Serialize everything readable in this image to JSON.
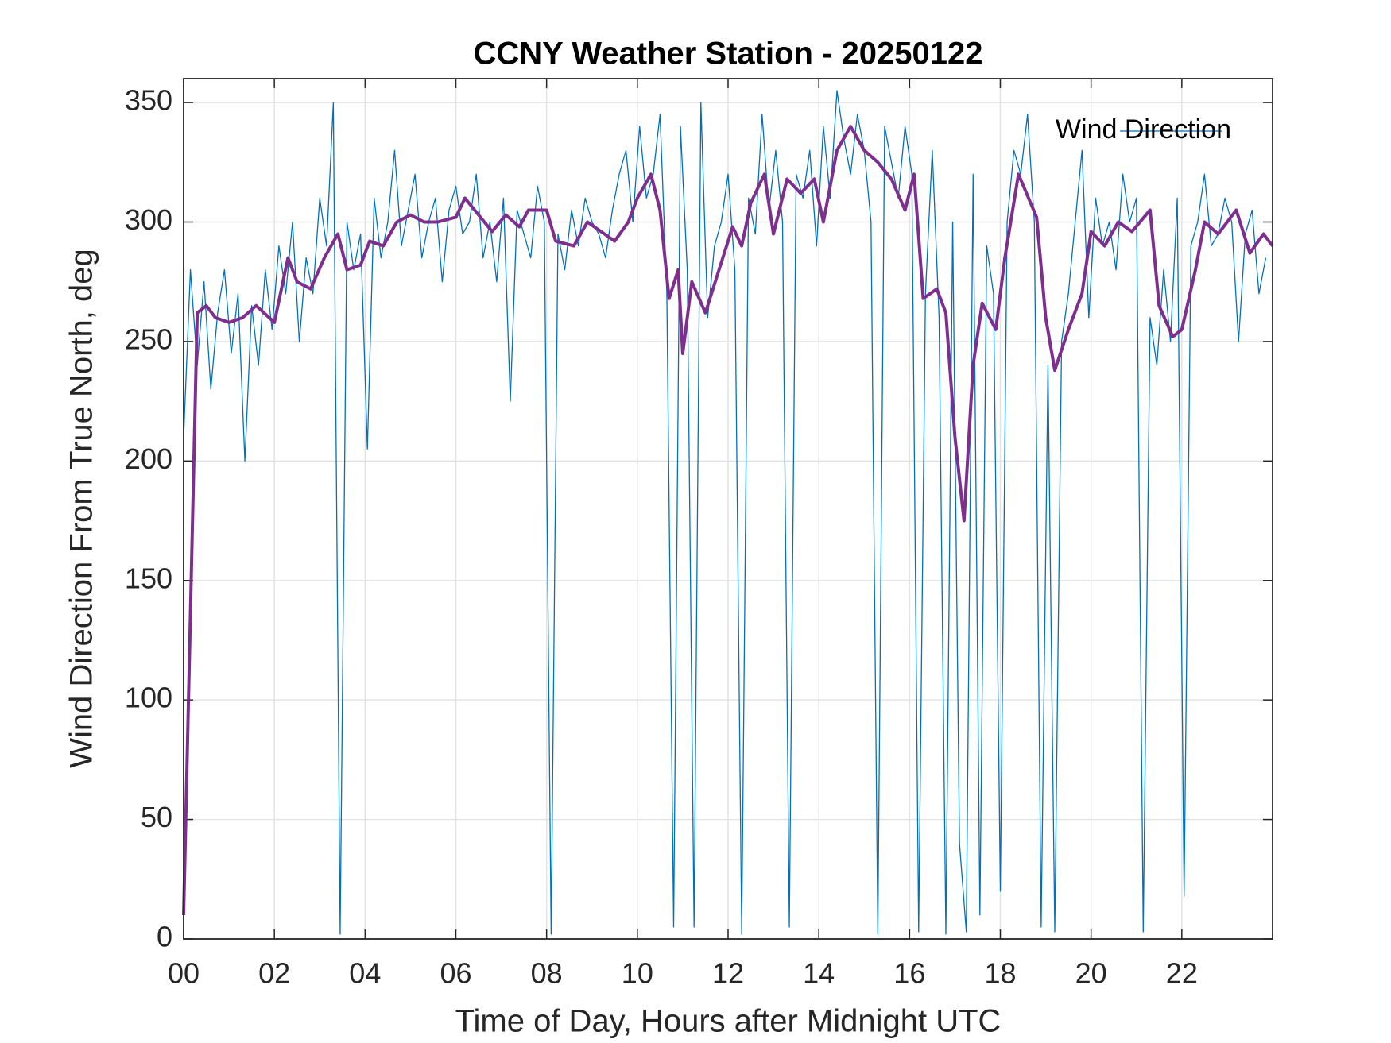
{
  "chart_data": {
    "type": "line",
    "title": "CCNY Weather Station - 20250122",
    "x_label": "Time of Day, Hours after Midnight UTC",
    "y_label": "Wind Direction From True North, deg",
    "xlim": [
      0,
      24
    ],
    "ylim": [
      0,
      360
    ],
    "xticks": [
      {
        "value": 0,
        "label": "00"
      },
      {
        "value": 2,
        "label": "02"
      },
      {
        "value": 4,
        "label": "04"
      },
      {
        "value": 6,
        "label": "06"
      },
      {
        "value": 8,
        "label": "08"
      },
      {
        "value": 10,
        "label": "10"
      },
      {
        "value": 12,
        "label": "12"
      },
      {
        "value": 14,
        "label": "14"
      },
      {
        "value": 16,
        "label": "16"
      },
      {
        "value": 18,
        "label": "18"
      },
      {
        "value": 20,
        "label": "20"
      },
      {
        "value": 22,
        "label": "22"
      }
    ],
    "yticks": [
      0,
      50,
      100,
      150,
      200,
      250,
      300,
      350
    ],
    "grid": true,
    "legend": "upper right",
    "series": [
      {
        "name": "Wind Direction",
        "color": "#0072BD",
        "width": 1.3,
        "x": [
          0,
          0.15,
          0.3,
          0.45,
          0.6,
          0.75,
          0.9,
          1.05,
          1.2,
          1.35,
          1.5,
          1.65,
          1.8,
          1.95,
          2.1,
          2.25,
          2.4,
          2.55,
          2.7,
          2.85,
          3,
          3.15,
          3.3,
          3.45,
          3.6,
          3.75,
          3.9,
          4.05,
          4.2,
          4.35,
          4.5,
          4.65,
          4.8,
          4.95,
          5.1,
          5.25,
          5.4,
          5.55,
          5.7,
          5.85,
          6,
          6.15,
          6.3,
          6.45,
          6.6,
          6.75,
          6.9,
          7.05,
          7.2,
          7.35,
          7.5,
          7.65,
          7.8,
          7.95,
          8.1,
          8.25,
          8.4,
          8.55,
          8.7,
          8.85,
          9,
          9.15,
          9.3,
          9.45,
          9.6,
          9.75,
          9.9,
          10.05,
          10.2,
          10.35,
          10.5,
          10.65,
          10.8,
          10.95,
          11.1,
          11.25,
          11.4,
          11.55,
          11.7,
          11.85,
          12,
          12.15,
          12.3,
          12.45,
          12.6,
          12.75,
          12.9,
          13.05,
          13.2,
          13.35,
          13.5,
          13.65,
          13.8,
          13.95,
          14.1,
          14.25,
          14.4,
          14.55,
          14.7,
          14.85,
          15,
          15.15,
          15.3,
          15.45,
          15.6,
          15.75,
          15.9,
          16.05,
          16.2,
          16.35,
          16.5,
          16.65,
          16.8,
          16.95,
          17.1,
          17.25,
          17.4,
          17.55,
          17.7,
          17.85,
          18,
          18.15,
          18.3,
          18.45,
          18.6,
          18.75,
          18.9,
          19.05,
          19.2,
          19.35,
          19.5,
          19.65,
          19.8,
          19.95,
          20.1,
          20.25,
          20.4,
          20.55,
          20.7,
          20.85,
          21,
          21.15,
          21.3,
          21.45,
          21.6,
          21.75,
          21.9,
          22.05,
          22.2,
          22.35,
          22.5,
          22.65,
          22.8,
          22.95,
          23.1,
          23.25,
          23.4,
          23.55,
          23.7,
          23.85
        ],
        "values": [
          210,
          280,
          240,
          275,
          230,
          262,
          280,
          245,
          270,
          200,
          265,
          240,
          280,
          255,
          290,
          270,
          300,
          250,
          285,
          270,
          310,
          290,
          350,
          2,
          300,
          280,
          295,
          205,
          310,
          285,
          300,
          330,
          290,
          305,
          320,
          285,
          300,
          310,
          275,
          305,
          315,
          295,
          300,
          320,
          285,
          300,
          275,
          310,
          225,
          305,
          295,
          285,
          315,
          300,
          2,
          295,
          280,
          305,
          290,
          310,
          300,
          295,
          285,
          305,
          320,
          330,
          300,
          340,
          310,
          320,
          345,
          270,
          5,
          340,
          280,
          5,
          350,
          260,
          290,
          300,
          320,
          280,
          2,
          310,
          295,
          345,
          305,
          330,
          300,
          5,
          320,
          310,
          330,
          290,
          340,
          310,
          355,
          335,
          320,
          345,
          330,
          300,
          2,
          340,
          325,
          310,
          340,
          320,
          3,
          270,
          330,
          260,
          2,
          300,
          40,
          3,
          320,
          10,
          290,
          270,
          20,
          300,
          330,
          320,
          345,
          300,
          5,
          240,
          3,
          250,
          270,
          300,
          330,
          260,
          310,
          290,
          300,
          280,
          320,
          300,
          310,
          3,
          260,
          240,
          280,
          250,
          310,
          18,
          290,
          300,
          320,
          290,
          295,
          310,
          300,
          250,
          295,
          305,
          270,
          285
        ]
      },
      {
        "color": "#7E2F8E",
        "width": 4,
        "x": [
          0,
          0.3,
          0.5,
          0.7,
          1,
          1.3,
          1.6,
          2,
          2.3,
          2.5,
          2.8,
          3.1,
          3.4,
          3.6,
          3.9,
          4.1,
          4.4,
          4.7,
          5,
          5.3,
          5.6,
          6,
          6.2,
          6.5,
          6.8,
          7.1,
          7.4,
          7.6,
          8,
          8.2,
          8.6,
          8.9,
          9.2,
          9.5,
          9.8,
          10,
          10.3,
          10.5,
          10.7,
          10.9,
          11,
          11.2,
          11.5,
          11.8,
          12.1,
          12.3,
          12.5,
          12.8,
          13,
          13.3,
          13.6,
          13.9,
          14.1,
          14.4,
          14.7,
          15,
          15.3,
          15.6,
          15.9,
          16.1,
          16.3,
          16.6,
          16.8,
          17,
          17.2,
          17.4,
          17.6,
          17.9,
          18.1,
          18.4,
          18.8,
          19,
          19.2,
          19.5,
          19.8,
          20,
          20.3,
          20.6,
          20.9,
          21.3,
          21.5,
          21.8,
          22,
          22.3,
          22.5,
          22.8,
          23.2,
          23.5,
          23.8,
          24
        ],
        "values": [
          10,
          262,
          265,
          260,
          258,
          260,
          265,
          258,
          285,
          275,
          272,
          285,
          295,
          280,
          282,
          292,
          290,
          300,
          303,
          300,
          300,
          302,
          310,
          303,
          296,
          303,
          298,
          305,
          305,
          292,
          290,
          300,
          296,
          292,
          300,
          310,
          320,
          305,
          268,
          280,
          245,
          275,
          262,
          280,
          298,
          290,
          308,
          320,
          295,
          318,
          312,
          318,
          300,
          330,
          340,
          330,
          325,
          318,
          305,
          320,
          268,
          272,
          262,
          210,
          175,
          240,
          266,
          255,
          285,
          320,
          302,
          260,
          238,
          255,
          270,
          296,
          290,
          300,
          296,
          305,
          265,
          252,
          255,
          280,
          300,
          295,
          305,
          287,
          295,
          290
        ]
      }
    ]
  }
}
